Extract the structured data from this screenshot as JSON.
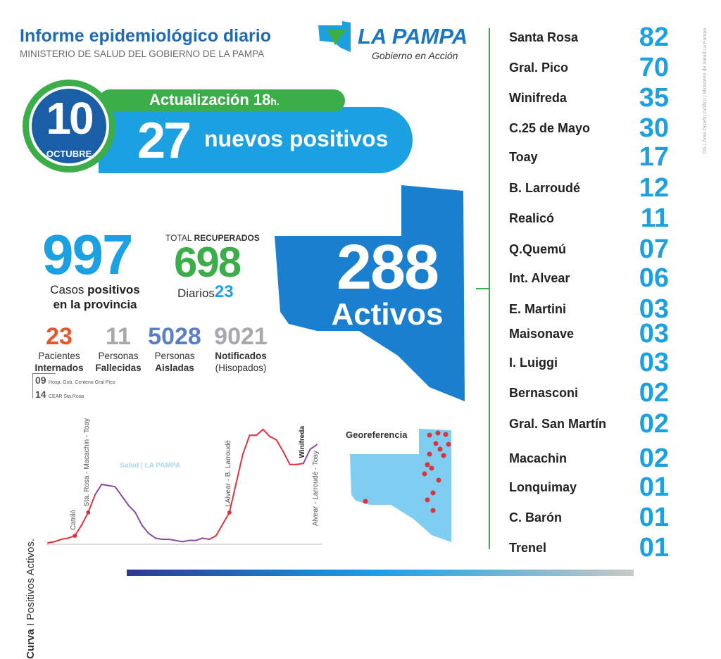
{
  "header": {
    "title": "Informe epidemiológico diario",
    "subtitle": "MINISTERIO DE SALUD DEL GOBIERNO DE LA PAMPA",
    "logo_text": "LA PAMPA",
    "logo_tagline": "Gobierno en Acción"
  },
  "date": {
    "day": "10",
    "month": "OCTUBRE"
  },
  "update": {
    "label": "Actualización 18",
    "suffix": "h."
  },
  "new_cases": {
    "value": "27",
    "label": "nuevos positivos"
  },
  "total": {
    "value": "997",
    "label_1": "Casos ",
    "label_bold": "positivos",
    "label_2": "en la provincia"
  },
  "recovered": {
    "label_1": "TOTAL ",
    "label_bold": "RECUPERADOS",
    "value": "698",
    "daily_label": "Diarios",
    "daily_value": "23"
  },
  "active": {
    "value": "288",
    "label": "Activos"
  },
  "stats": [
    {
      "value": "23",
      "line1": "Pacientes",
      "line2": "Internados",
      "color": "#e8552d"
    },
    {
      "value": "11",
      "line1": "Personas",
      "line2": "Fallecidas",
      "color": "#a7a9ac"
    },
    {
      "value": "5028",
      "line1": "Personas",
      "line2": "Aisladas",
      "color": "#5b7fc4"
    },
    {
      "value": "9021",
      "line1": "Notificados",
      "line2": "(Hisopados)",
      "color": "#a7a9ac"
    }
  ],
  "hospital": [
    {
      "value": "09",
      "label": "Hosp. Gob. Centeno Gral Pico"
    },
    {
      "value": "14",
      "label": "CEAR Sta.Rosa"
    }
  ],
  "localities": [
    {
      "name": "Santa Rosa",
      "value": "82"
    },
    {
      "name": "Gral. Pico",
      "value": "70"
    },
    {
      "name": "Winifreda",
      "value": "35"
    },
    {
      "name": "C.25 de Mayo",
      "value": "30"
    },
    {
      "name": "Toay",
      "value": "17"
    },
    {
      "name": "B. Larroudé",
      "value": "12"
    },
    {
      "name": "Realicó",
      "value": "11"
    },
    {
      "name": "Q.Quemú",
      "value": "07"
    },
    {
      "name": "Int. Alvear",
      "value": "06"
    },
    {
      "name": "E. Martini",
      "value": "03"
    },
    {
      "name": "Maisonave",
      "value": "03"
    },
    {
      "name": "I. Luiggi",
      "value": "03"
    },
    {
      "name": "Bernasconi",
      "value": "02"
    },
    {
      "name": "Gral. San Martín",
      "value": "02"
    },
    {
      "name": "Macachin",
      "value": "02"
    },
    {
      "name": "Lonquimay",
      "value": "01"
    },
    {
      "name": "C. Barón",
      "value": "01"
    },
    {
      "name": "Trenel",
      "value": "01"
    }
  ],
  "georef": {
    "label": "Georeferencia"
  },
  "credit": "DG | Área Diseño Gráfico | Ministerio de Salud La Pampa",
  "chart_data": {
    "type": "line",
    "title_bold": "Curva",
    "title_rest": " I Positivos Activos.",
    "values": [
      0,
      1,
      3,
      4,
      6,
      15,
      26,
      41,
      50,
      49,
      48,
      40,
      32,
      26,
      15,
      8,
      4,
      3,
      3,
      2,
      1,
      2,
      2,
      4,
      3,
      6,
      16,
      26,
      51,
      76,
      92,
      92,
      97,
      91,
      88,
      78,
      67,
      67,
      68,
      80,
      84
    ],
    "colors": {
      "rising": "#e0323c",
      "falling": "#8a4b9e"
    },
    "annotations": [
      {
        "index": 4,
        "label": "Catriló"
      },
      {
        "index": 6,
        "label": "Sta. Rosa - Macachin - Toay"
      },
      {
        "index": 27,
        "label": "I.Alvear - B. Larroudé"
      },
      {
        "index": 38,
        "label": "Winifreda"
      },
      {
        "index": 40,
        "label": "Alvear - Larroudé - Toay"
      }
    ],
    "watermark": "Salud | LA PAMPA"
  }
}
